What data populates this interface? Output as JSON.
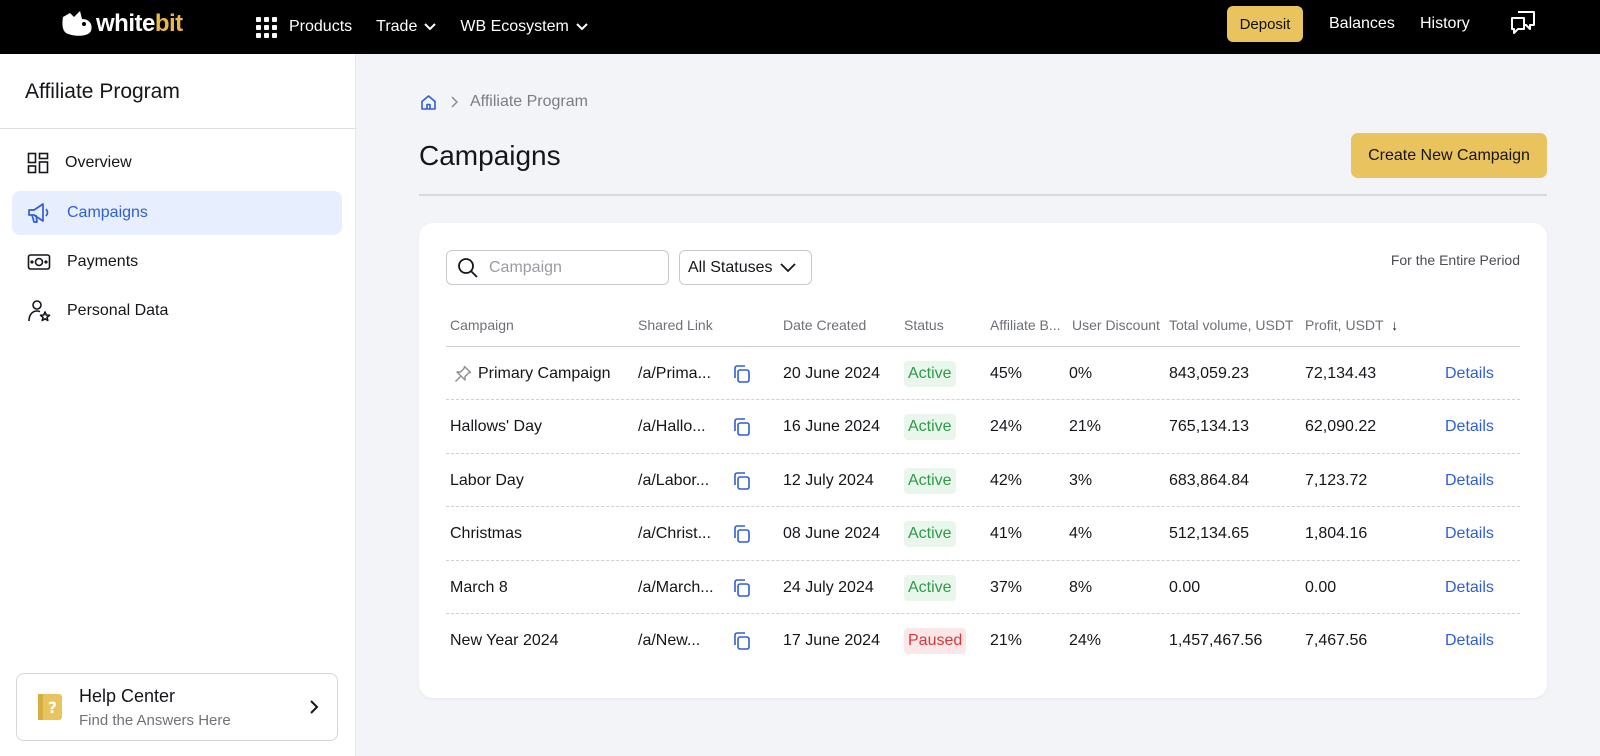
{
  "topbar": {
    "logo_part1": "white",
    "logo_part2": "bit",
    "nav": [
      {
        "label": "Products",
        "icon": "apps-grid-icon"
      },
      {
        "label": "Trade",
        "icon": "chevron-down-icon"
      },
      {
        "label": "WB Ecosystem",
        "icon": "chevron-down-icon"
      }
    ],
    "deposit_label": "Deposit",
    "balances_label": "Balances",
    "history_label": "History",
    "accent_color": "#e9c35e"
  },
  "sidebar": {
    "title": "Affiliate Program",
    "items": [
      {
        "label": "Overview",
        "icon": "dashboard-icon",
        "active": false
      },
      {
        "label": "Campaigns",
        "icon": "megaphone-icon",
        "active": true
      },
      {
        "label": "Payments",
        "icon": "cash-icon",
        "active": false
      },
      {
        "label": "Personal Data",
        "icon": "user-star-icon",
        "active": false
      }
    ],
    "help": {
      "title": "Help Center",
      "subtitle": "Find the Answers Here"
    }
  },
  "main": {
    "breadcrumb": {
      "current": "Affiliate Program"
    },
    "title": "Campaigns",
    "create_button": "Create New Campaign",
    "filters": {
      "search_placeholder": "Campaign",
      "status_selected": "All Statuses",
      "period_label": "For the Entire Period"
    },
    "columns": [
      "Campaign",
      "Shared Link",
      "Date Created",
      "Status",
      "Affiliate B...",
      "User Discount",
      "Total volume, USDT",
      "Profit, USDT"
    ],
    "sort_indicator": "↓",
    "rows": [
      {
        "name": "Primary Campaign",
        "pinned": true,
        "link": "/a/Prima...",
        "date": "20 June 2024",
        "status": "Active",
        "affiliate": "45%",
        "discount": "0%",
        "volume": "843,059.23",
        "profit": "72,134.43",
        "action": "Details"
      },
      {
        "name": "Hallows' Day",
        "pinned": false,
        "link": "/a/Hallo...",
        "date": "16 June 2024",
        "status": "Active",
        "affiliate": "24%",
        "discount": "21%",
        "volume": "765,134.13",
        "profit": "62,090.22",
        "action": "Details"
      },
      {
        "name": "Labor Day",
        "pinned": false,
        "link": "/a/Labor...",
        "date": "12 July 2024",
        "status": "Active",
        "affiliate": "42%",
        "discount": "3%",
        "volume": "683,864.84",
        "profit": "7,123.72",
        "action": "Details"
      },
      {
        "name": "Christmas",
        "pinned": false,
        "link": "/a/Christ...",
        "date": "08 June 2024",
        "status": "Active",
        "affiliate": "41%",
        "discount": "4%",
        "volume": "512,134.65",
        "profit": "1,804.16",
        "action": "Details"
      },
      {
        "name": "March 8",
        "pinned": false,
        "link": "/a/March...",
        "date": "24 July 2024",
        "status": "Active",
        "affiliate": "37%",
        "discount": "8%",
        "volume": "0.00",
        "profit": "0.00",
        "action": "Details"
      },
      {
        "name": "New Year 2024",
        "pinned": false,
        "link": "/a/New...",
        "date": "17 June 2024",
        "status": "Paused",
        "affiliate": "21%",
        "discount": "24%",
        "volume": "1,457,467.56",
        "profit": "7,467.56",
        "action": "Details"
      }
    ]
  }
}
